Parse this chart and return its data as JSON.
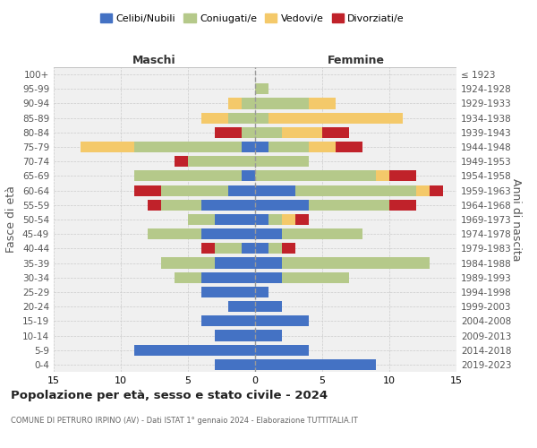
{
  "age_groups": [
    "0-4",
    "5-9",
    "10-14",
    "15-19",
    "20-24",
    "25-29",
    "30-34",
    "35-39",
    "40-44",
    "45-49",
    "50-54",
    "55-59",
    "60-64",
    "65-69",
    "70-74",
    "75-79",
    "80-84",
    "85-89",
    "90-94",
    "95-99",
    "100+"
  ],
  "birth_years": [
    "2019-2023",
    "2014-2018",
    "2009-2013",
    "2004-2008",
    "1999-2003",
    "1994-1998",
    "1989-1993",
    "1984-1988",
    "1979-1983",
    "1974-1978",
    "1969-1973",
    "1964-1968",
    "1959-1963",
    "1954-1958",
    "1949-1953",
    "1944-1948",
    "1939-1943",
    "1934-1938",
    "1929-1933",
    "1924-1928",
    "≤ 1923"
  ],
  "colors": {
    "celibi": "#4472c4",
    "coniugati": "#b5c98a",
    "vedovi": "#f4c96a",
    "divorziati": "#c0222a"
  },
  "maschi": {
    "celibi": [
      3,
      9,
      3,
      4,
      2,
      4,
      4,
      3,
      1,
      4,
      3,
      4,
      2,
      1,
      0,
      1,
      0,
      0,
      0,
      0,
      0
    ],
    "coniugati": [
      0,
      0,
      0,
      0,
      0,
      0,
      2,
      4,
      2,
      4,
      2,
      3,
      5,
      8,
      5,
      8,
      1,
      2,
      1,
      0,
      0
    ],
    "vedovi": [
      0,
      0,
      0,
      0,
      0,
      0,
      0,
      0,
      0,
      0,
      0,
      0,
      0,
      0,
      0,
      4,
      0,
      2,
      1,
      0,
      0
    ],
    "divorziati": [
      0,
      0,
      0,
      0,
      0,
      0,
      0,
      0,
      1,
      0,
      0,
      1,
      2,
      0,
      1,
      0,
      2,
      0,
      0,
      0,
      0
    ]
  },
  "femmine": {
    "celibi": [
      9,
      4,
      2,
      4,
      2,
      1,
      2,
      2,
      1,
      2,
      1,
      4,
      3,
      0,
      0,
      1,
      0,
      0,
      0,
      0,
      0
    ],
    "coniugati": [
      0,
      0,
      0,
      0,
      0,
      0,
      5,
      11,
      1,
      6,
      1,
      6,
      9,
      9,
      4,
      3,
      2,
      1,
      4,
      1,
      0
    ],
    "vedovi": [
      0,
      0,
      0,
      0,
      0,
      0,
      0,
      0,
      0,
      0,
      1,
      0,
      1,
      1,
      0,
      2,
      3,
      10,
      2,
      0,
      0
    ],
    "divorziati": [
      0,
      0,
      0,
      0,
      0,
      0,
      0,
      0,
      1,
      0,
      1,
      2,
      1,
      2,
      0,
      2,
      2,
      0,
      0,
      0,
      0
    ]
  },
  "title": "Popolazione per età, sesso e stato civile - 2024",
  "subtitle": "COMUNE DI PETRURO IRPINO (AV) - Dati ISTAT 1° gennaio 2024 - Elaborazione TUTTITALIA.IT",
  "xlabel_left": "Maschi",
  "xlabel_right": "Femmine",
  "ylabel_left": "Fasce di età",
  "ylabel_right": "Anni di nascita",
  "xlim": 15,
  "legend_labels": [
    "Celibi/Nubili",
    "Coniugati/e",
    "Vedovi/e",
    "Divorziati/e"
  ],
  "background_color": "#f0f0f0",
  "grid_color": "#cccccc"
}
